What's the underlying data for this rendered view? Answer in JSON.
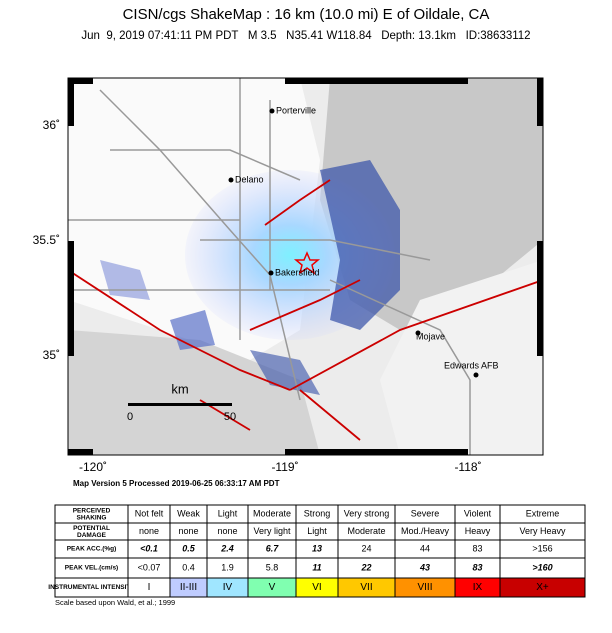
{
  "header": {
    "title": "CISN/cgs ShakeMap : 16 km (10.0 mi) E of Oildale, CA",
    "subtitle": "Jun  9, 2019 07:41:11 PM PDT   M 3.5   N35.41 W118.84   Depth: 13.1km   ID:38633112"
  },
  "map": {
    "latitude_labels": [
      "36˚",
      "35.5˚",
      "35˚"
    ],
    "longitude_labels": [
      "-120˚",
      "-119˚",
      "-118˚"
    ],
    "places": [
      "Porterville",
      "Delano",
      "Bakersfield",
      "Mojave",
      "Edwards AFB"
    ],
    "scale_bar": {
      "unit": "km",
      "start": "0",
      "end": "50"
    },
    "version": "Map Version 5 Processed 2019-06-25 06:33:17 AM PDT"
  },
  "table": {
    "rows": [
      [
        "PERCEIVED SHAKING",
        "Not felt",
        "Weak",
        "Light",
        "Moderate",
        "Strong",
        "Very strong",
        "Severe",
        "Violent",
        "Extreme"
      ],
      [
        "POTENTIAL DAMAGE",
        "none",
        "none",
        "none",
        "Very light",
        "Light",
        "Moderate",
        "Mod./Heavy",
        "Heavy",
        "Very Heavy"
      ],
      [
        "PEAK ACC.(%g)",
        "<0.1",
        "0.5",
        "2.4",
        "6.7",
        "13",
        "24",
        "44",
        "83",
        ">156"
      ],
      [
        "PEAK VEL.(cm/s)",
        "<0.07",
        "0.4",
        "1.9",
        "5.8",
        "11",
        "22",
        "43",
        "83",
        ">160"
      ],
      [
        "INSTRUMENTAL INTENSITY",
        "I",
        "II-III",
        "IV",
        "V",
        "VI",
        "VII",
        "VIII",
        "IX",
        "X+"
      ]
    ]
  },
  "footer": {
    "note": "Scale based upon Wald, et al.; 1999"
  }
}
